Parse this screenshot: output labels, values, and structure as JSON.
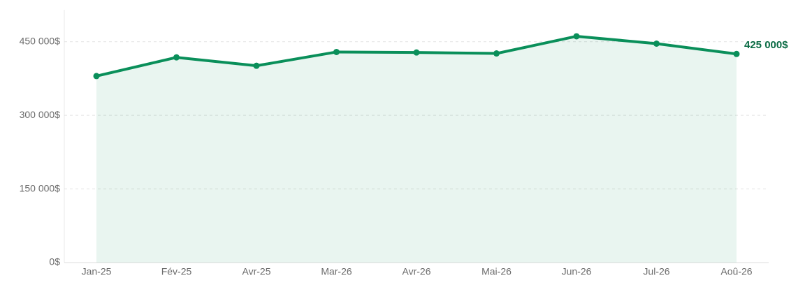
{
  "chart_data": {
    "type": "line",
    "categories": [
      "Jan-25",
      "Fév-25",
      "Avr-25",
      "Mar-26",
      "Avr-26",
      "Mai-26",
      "Jun-26",
      "Jul-26",
      "Aoû-26"
    ],
    "series": [
      {
        "color": "#0a8f5a",
        "values": [
          380000,
          418000,
          401000,
          429000,
          428000,
          426000,
          461000,
          446000,
          425000
        ],
        "value_labels": [
          null,
          null,
          null,
          null,
          null,
          null,
          null,
          null,
          "425 000$"
        ]
      }
    ],
    "area": true,
    "ylim": [
      0,
      515000
    ],
    "yticks": [
      {
        "value": 0,
        "label": "0$"
      },
      {
        "value": 150000,
        "label": "150 000$"
      },
      {
        "value": 300000,
        "label": "300 000$"
      },
      {
        "value": 450000,
        "label": "450 000$"
      }
    ],
    "grid": true
  }
}
